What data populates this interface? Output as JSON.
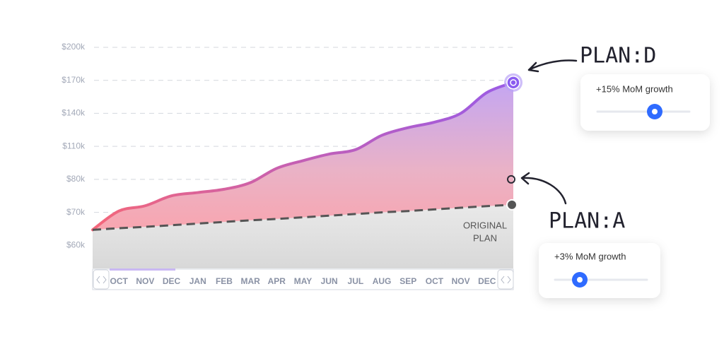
{
  "chart_data": {
    "type": "area",
    "categories": [
      null,
      "OCT",
      "NOV",
      "DEC",
      "JAN",
      "FEB",
      "MAR",
      "APR",
      "MAY",
      "JUN",
      "JUL",
      "AUG",
      "SEP",
      "OCT",
      "NOV",
      "DEC",
      null
    ],
    "series": [
      {
        "color": "#9b5de5",
        "values": [
          64700,
          70400,
          72000,
          75000,
          76000,
          77000,
          79000,
          90000,
          97000,
          103000,
          107000,
          120000,
          127000,
          132000,
          140000,
          159000,
          168000
        ]
      },
      {
        "color": "#555555",
        "dashed": true,
        "values": [
          64700,
          65200,
          65600,
          66100,
          66600,
          67100,
          67600,
          68000,
          68500,
          69000,
          69500,
          70000,
          70400,
          70900,
          71400,
          71900,
          72300
        ]
      }
    ],
    "ylim": [
      53000,
      200000
    ],
    "yticks": [
      {
        "value": 60000,
        "label": "$60k"
      },
      {
        "value": 70000,
        "label": "$70k"
      },
      {
        "value": 80000,
        "label": "$80k"
      },
      {
        "value": 110000,
        "label": "$110k"
      },
      {
        "value": 140000,
        "label": "$140k"
      },
      {
        "value": 170000,
        "label": "$170k"
      },
      {
        "value": 200000,
        "label": "$200k"
      }
    ],
    "grid": true,
    "area_label": [
      "ORIGINAL",
      "PLAN"
    ],
    "plan_d": {
      "label": "PLAN:D",
      "slider_label": "+15% MoM growth"
    },
    "plan_a": {
      "label": "PLAN:A",
      "slider_label": "+3% MoM growth",
      "value": 80000
    }
  }
}
